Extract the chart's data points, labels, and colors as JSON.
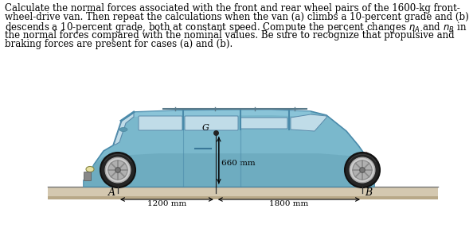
{
  "bg_color": "#ffffff",
  "text_color": "#000000",
  "ground_top_color": "#d4c8b0",
  "ground_grad_color": "#b8a888",
  "ground_line_color": "#555555",
  "van_body_color": "#7ab8cc",
  "van_body_dark": "#5a98ac",
  "van_body_light": "#a0d0e0",
  "window_color": "#c0dce8",
  "window_dark": "#90b8cc",
  "wheel_outer": "#2a2a2a",
  "wheel_rim": "#aaaaaa",
  "wheel_hub": "#888888",
  "label_A": "A",
  "label_B": "B",
  "label_660": "660 mm",
  "label_1200": "1200 mm",
  "label_1800": "1800 mm",
  "label_G": "G",
  "font_size_text": 8.5,
  "font_size_labels": 8.5,
  "fig_width": 5.94,
  "fig_height": 2.92,
  "text_lines": [
    "Calculate the normal forces associated with the front and rear wheel pairs of the 1600-kg front-",
    "wheel-drive van. Then repeat the calculations when the van (a) climbs a 10-percent grade and (b)",
    "descends a 10-percent grade, both at constant speed. Compute the percent changes $n_A$ and $n_B$ in",
    "the normal forces compared with the nominal values. Be sure to recognize that propulsive and",
    "braking forces are present for cases (a) and (b)."
  ]
}
